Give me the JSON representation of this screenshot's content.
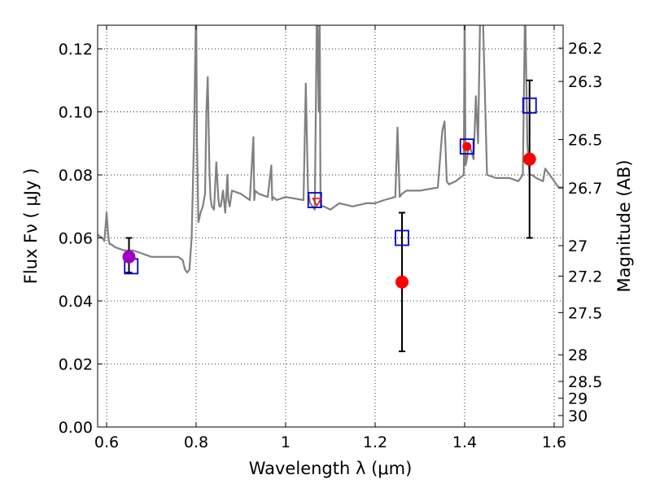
{
  "chart_data": {
    "type": "scatter",
    "xlabel": "Wavelength  λ (μm)",
    "ylabel": "Flux  Fν  ( μJy )",
    "ylabel_right": "Magnitude (AB)",
    "xlim": [
      0.58,
      1.62
    ],
    "ylim": [
      0.0,
      0.1275
    ],
    "x_ticks": [
      0.6,
      0.8,
      1.0,
      1.2,
      1.4,
      1.6
    ],
    "x_tick_labels": [
      "0.6",
      "0.8",
      "1",
      "1.2",
      "1.4",
      "1.6"
    ],
    "y_ticks": [
      0.0,
      0.02,
      0.04,
      0.06,
      0.08,
      0.1,
      0.12
    ],
    "y_tick_labels": [
      "0.00",
      "0.02",
      "0.04",
      "0.06",
      "0.08",
      "0.10",
      "0.12"
    ],
    "right_ticks": [
      26.2,
      26.3,
      26.5,
      26.7,
      27,
      27.2,
      27.5,
      28,
      28.5,
      29,
      30
    ],
    "right_tick_labels": [
      "26.2",
      "26.3",
      "26.5",
      "26.7",
      "27",
      "27.2",
      "27.5",
      "28",
      "28.5",
      "29",
      "30"
    ],
    "grid": true,
    "colors": {
      "model": "#808080",
      "observed_red": "#ff0000",
      "observed_purple": "#a000c0",
      "model_box": "#0000cc",
      "errorbar": "#000000"
    },
    "model_spectrum": {
      "x": [
        0.58,
        0.59,
        0.595,
        0.6,
        0.603,
        0.605,
        0.607,
        0.61,
        0.62,
        0.64,
        0.66,
        0.68,
        0.7,
        0.72,
        0.74,
        0.76,
        0.77,
        0.775,
        0.78,
        0.785,
        0.79,
        0.795,
        0.8,
        0.802,
        0.805,
        0.81,
        0.815,
        0.82,
        0.823,
        0.826,
        0.828,
        0.83,
        0.832,
        0.835,
        0.84,
        0.845,
        0.85,
        0.852,
        0.855,
        0.86,
        0.865,
        0.87,
        0.872,
        0.875,
        0.88,
        0.9,
        0.92,
        0.928,
        0.93,
        0.932,
        0.94,
        0.96,
        0.968,
        0.97,
        0.972,
        0.98,
        1.0,
        1.04,
        1.045,
        1.05,
        1.055,
        1.06,
        1.065,
        1.07,
        1.074,
        1.076,
        1.078,
        1.082,
        1.085,
        1.1,
        1.12,
        1.15,
        1.18,
        1.2,
        1.22,
        1.245,
        1.25,
        1.255,
        1.26,
        1.27,
        1.3,
        1.34,
        1.35,
        1.355,
        1.36,
        1.365,
        1.38,
        1.398,
        1.4,
        1.402,
        1.405,
        1.41,
        1.42,
        1.425,
        1.43,
        1.435,
        1.44,
        1.45,
        1.47,
        1.5,
        1.52,
        1.53,
        1.535,
        1.54,
        1.545,
        1.55,
        1.56,
        1.575,
        1.58,
        1.6,
        1.61,
        1.62
      ],
      "y": [
        0.061,
        0.06,
        0.059,
        0.068,
        0.062,
        0.059,
        0.058,
        0.058,
        0.057,
        0.056,
        0.056,
        0.055,
        0.054,
        0.054,
        0.054,
        0.054,
        0.053,
        0.05,
        0.049,
        0.05,
        0.06,
        0.09,
        0.135,
        0.09,
        0.065,
        0.068,
        0.07,
        0.074,
        0.1,
        0.111,
        0.095,
        0.08,
        0.073,
        0.07,
        0.069,
        0.084,
        0.072,
        0.07,
        0.07,
        0.075,
        0.068,
        0.08,
        0.072,
        0.07,
        0.075,
        0.074,
        0.072,
        0.092,
        0.072,
        0.075,
        0.074,
        0.073,
        0.083,
        0.072,
        0.073,
        0.072,
        0.073,
        0.072,
        0.109,
        0.075,
        0.071,
        0.07,
        0.069,
        0.135,
        0.1,
        0.135,
        0.07,
        0.07,
        0.07,
        0.069,
        0.071,
        0.07,
        0.071,
        0.071,
        0.072,
        0.073,
        0.095,
        0.073,
        0.074,
        0.075,
        0.075,
        0.076,
        0.094,
        0.097,
        0.078,
        0.077,
        0.078,
        0.08,
        0.135,
        0.083,
        0.085,
        0.09,
        0.085,
        0.105,
        0.09,
        0.135,
        0.135,
        0.08,
        0.079,
        0.079,
        0.078,
        0.08,
        0.135,
        0.09,
        0.08,
        0.08,
        0.079,
        0.078,
        0.082,
        0.078,
        0.076,
        0.076
      ]
    },
    "observed_points": [
      {
        "x": 0.65,
        "y": 0.054,
        "yerr_low": 0.049,
        "yerr_high": 0.06,
        "color": "purple"
      },
      {
        "x": 1.26,
        "y": 0.046,
        "yerr_low": 0.024,
        "yerr_high": 0.068,
        "color": "red"
      },
      {
        "x": 1.405,
        "y": 0.089,
        "yerr_low": null,
        "yerr_high": null,
        "color": "red"
      },
      {
        "x": 1.545,
        "y": 0.085,
        "yerr_low": 0.06,
        "yerr_high": 0.11,
        "color": "red"
      }
    ],
    "observed_triangle": {
      "x": 1.07,
      "y": 0.0715
    },
    "model_boxes": [
      {
        "x": 0.655,
        "y": 0.051
      },
      {
        "x": 1.065,
        "y": 0.072
      },
      {
        "x": 1.26,
        "y": 0.06
      },
      {
        "x": 1.405,
        "y": 0.089
      },
      {
        "x": 1.545,
        "y": 0.102
      }
    ]
  }
}
